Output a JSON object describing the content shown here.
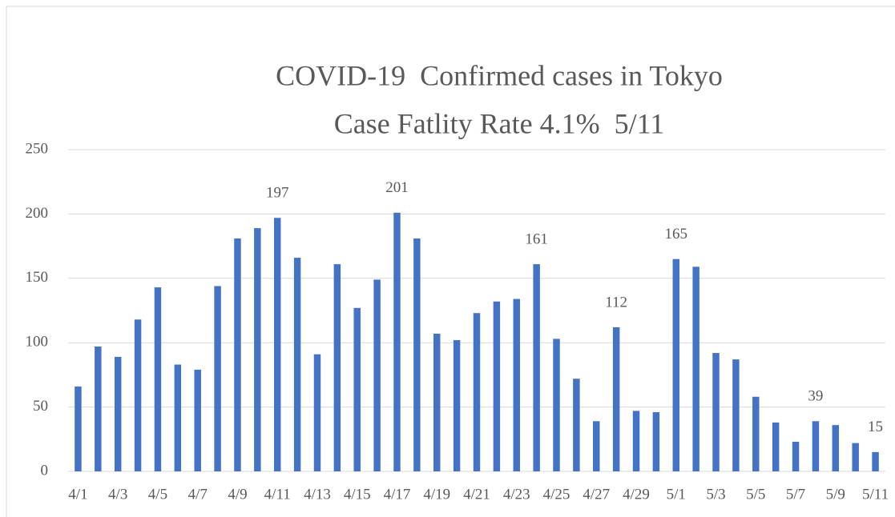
{
  "chart_data": {
    "type": "bar",
    "title": "COVID-19  Confirmed cases in Tokyo",
    "subtitle": "Case Fatlity Rate 4.1%  5/11",
    "categories": [
      "4/1",
      null,
      "4/3",
      null,
      "4/5",
      null,
      "4/7",
      null,
      "4/9",
      null,
      "4/11",
      null,
      "4/13",
      null,
      "4/15",
      null,
      "4/17",
      null,
      "4/19",
      null,
      "4/21",
      null,
      "4/23",
      null,
      "4/25",
      null,
      "4/27",
      null,
      "4/29",
      null,
      "5/1",
      null,
      "5/3",
      null,
      "5/5",
      null,
      "5/7",
      null,
      "5/9",
      null,
      "5/11"
    ],
    "values": [
      66,
      97,
      89,
      118,
      143,
      83,
      79,
      144,
      181,
      189,
      197,
      166,
      91,
      161,
      127,
      149,
      201,
      181,
      107,
      102,
      123,
      132,
      134,
      161,
      103,
      72,
      39,
      112,
      47,
      46,
      165,
      159,
      92,
      87,
      58,
      38,
      23,
      39,
      36,
      22,
      15
    ],
    "value_labels": [
      null,
      null,
      null,
      null,
      null,
      null,
      null,
      null,
      null,
      null,
      "197",
      null,
      null,
      null,
      null,
      null,
      "201",
      null,
      null,
      null,
      null,
      null,
      null,
      "161",
      null,
      null,
      null,
      "112",
      null,
      null,
      "165",
      null,
      null,
      null,
      null,
      null,
      null,
      "39",
      null,
      null,
      "15"
    ],
    "color": "#4472c4",
    "ylim": [
      0,
      250
    ],
    "yticks": [
      0,
      50,
      100,
      150,
      200,
      250
    ],
    "grid": true
  }
}
